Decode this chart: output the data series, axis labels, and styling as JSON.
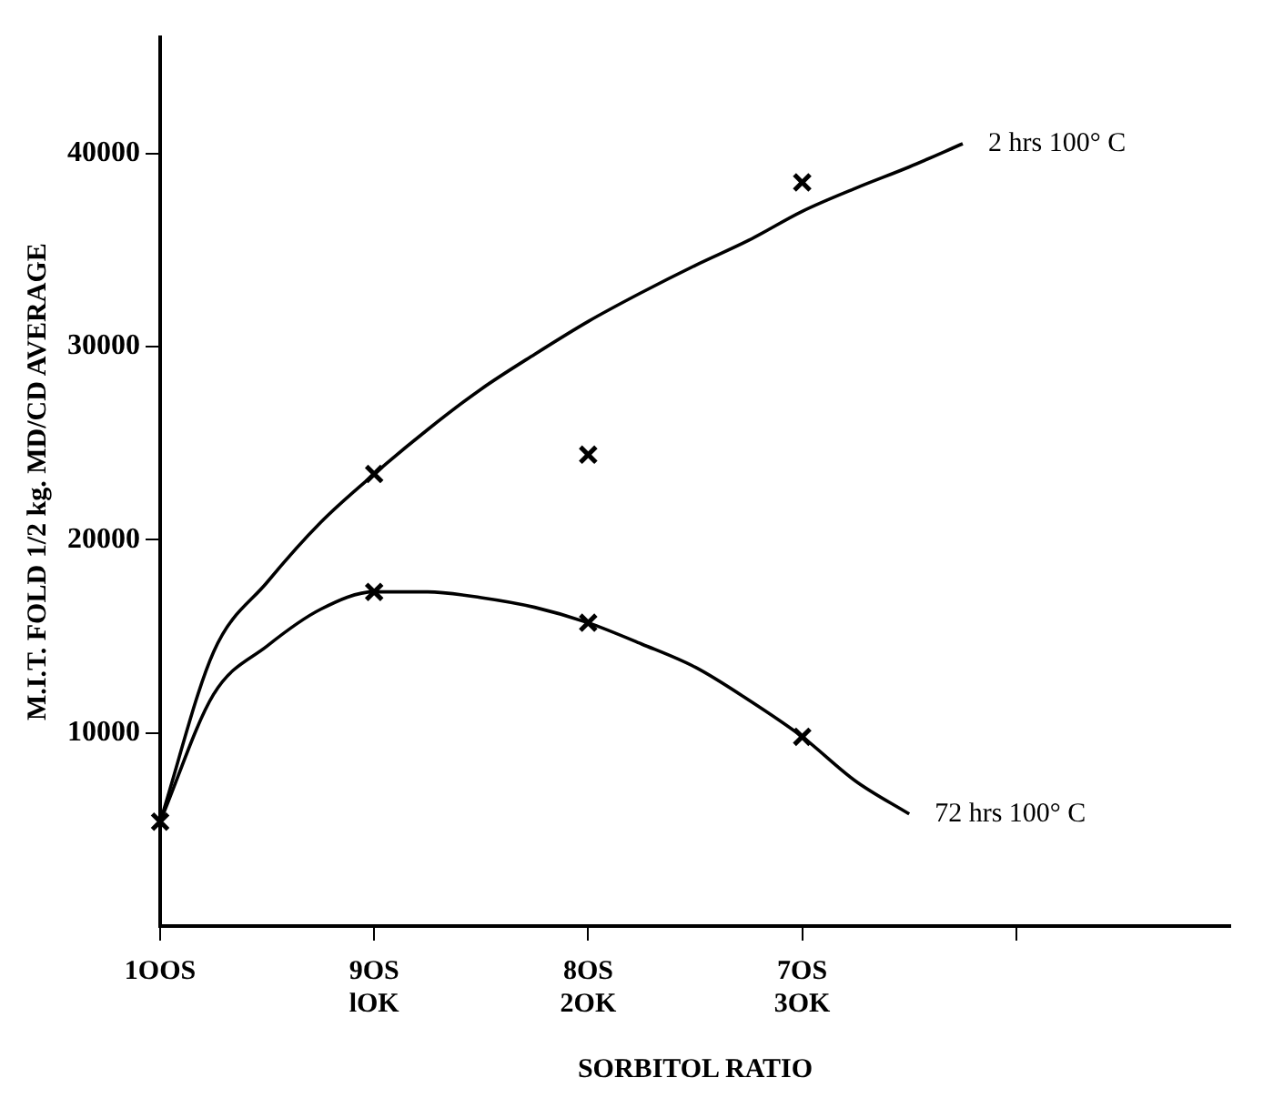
{
  "chart_data": {
    "type": "line",
    "xlabel": "SORBITOL RATIO",
    "ylabel": "M.I.T. FOLD 1/2 kg. MD/CD AVERAGE",
    "categories": [
      "1OOS",
      null,
      null,
      null,
      "9OS\nlOK",
      null,
      null,
      null,
      "8OS\n2OK",
      null,
      null,
      null,
      "7OS\n3OK",
      null,
      null,
      null,
      null,
      null,
      null,
      null,
      null
    ],
    "ylim": [
      0,
      46000
    ],
    "yticks": [
      10000,
      20000,
      30000,
      40000
    ],
    "grid": false,
    "legend": false,
    "marker": "none",
    "line_style": "solid",
    "series": [
      {
        "name": "2 hrs 100° C",
        "color": "#000000",
        "values": [
          5400,
          14200,
          17800,
          20900,
          23400,
          25700,
          27800,
          29600,
          31300,
          32800,
          34200,
          35500,
          37000,
          38200,
          39300,
          40500,
          null,
          null,
          null,
          null,
          null
        ]
      },
      {
        "name": "72 hrs 100° C",
        "color": "#000000",
        "values": [
          5400,
          12000,
          14500,
          16400,
          17300,
          17300,
          17000,
          16500,
          15700,
          14600,
          13400,
          11700,
          9800,
          7500,
          5800,
          null,
          null,
          null,
          null,
          null,
          null
        ]
      },
      {
        "type": "scatter",
        "color": "#000000",
        "marker": "cross",
        "values": [
          5400,
          null,
          null,
          null,
          23400,
          null,
          null,
          null,
          24400,
          null,
          null,
          null,
          38500,
          null,
          null,
          null,
          null,
          null,
          null,
          null,
          null
        ]
      },
      {
        "type": "scatter",
        "color": "#000000",
        "marker": "cross",
        "values": [
          null,
          null,
          null,
          null,
          17300,
          null,
          null,
          null,
          15700,
          null,
          null,
          null,
          9800,
          null,
          null,
          null,
          null,
          null,
          null,
          null,
          null
        ]
      }
    ]
  }
}
